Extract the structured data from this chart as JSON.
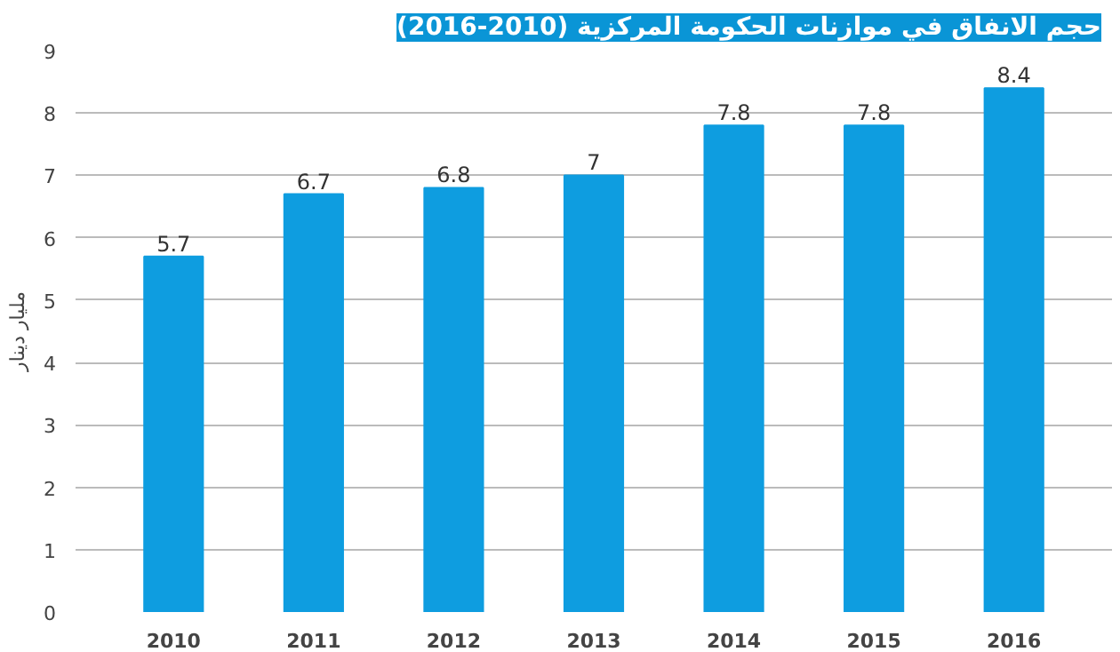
{
  "chart_data": {
    "type": "bar",
    "title": "حجم الانفاق في موازنات الحكومة المركزية (2010-2016)",
    "ylabel": "مليار دينار",
    "categories": [
      "2010",
      "2011",
      "2012",
      "2013",
      "2014",
      "2015",
      "2016"
    ],
    "values": [
      5.7,
      6.7,
      6.8,
      7,
      7.8,
      7.8,
      8.4
    ],
    "color": "#0e9de0",
    "ylim": [
      0,
      9
    ],
    "yticks": [
      0,
      1,
      2,
      3,
      4,
      5,
      6,
      7,
      8,
      9
    ],
    "grid": "y",
    "data_labels": true
  }
}
